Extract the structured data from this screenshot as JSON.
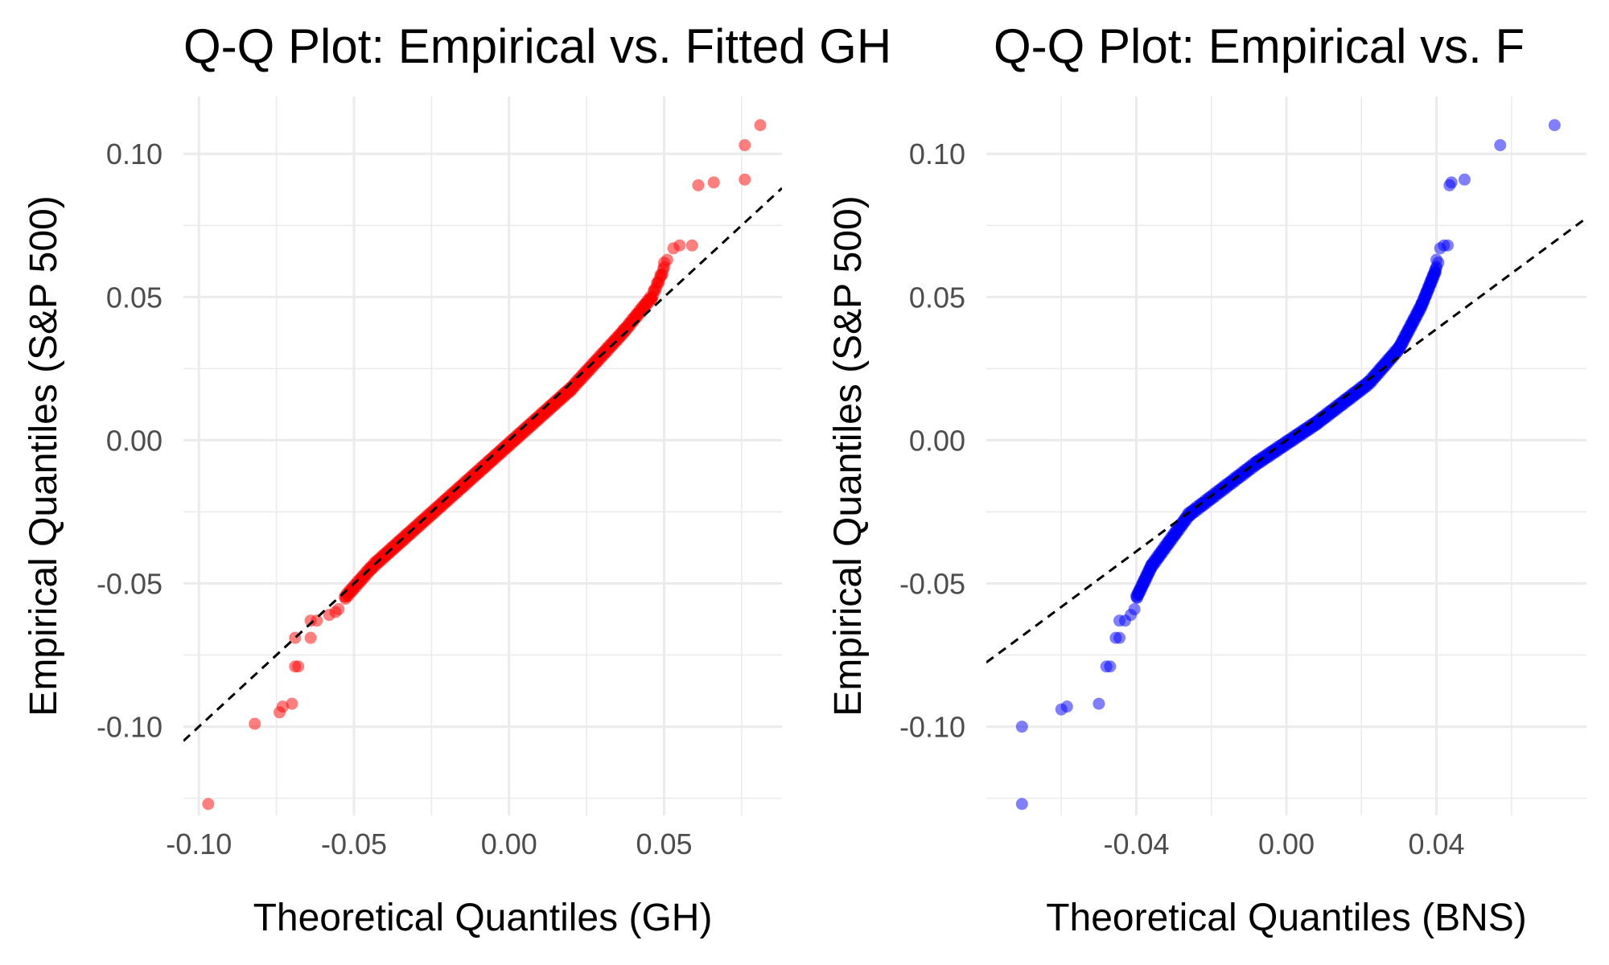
{
  "chart_data": [
    {
      "type": "scatter",
      "title": "Q-Q Plot: Empirical vs. Fitted GH",
      "xlabel": "Theoretical Quantiles (GH)",
      "ylabel": "Empirical Quantiles (S&P 500)",
      "xlim": [
        -0.105,
        0.088
      ],
      "ylim": [
        -0.131,
        0.12
      ],
      "x_ticks": [
        -0.1,
        -0.05,
        0.0,
        0.05
      ],
      "x_tick_labels": [
        "-0.10",
        "-0.05",
        "0.00",
        "0.05"
      ],
      "y_ticks": [
        -0.1,
        -0.05,
        0.0,
        0.05,
        0.1
      ],
      "y_tick_labels": [
        "-0.10",
        "-0.05",
        "0.00",
        "0.05",
        "0.10"
      ],
      "grid": true,
      "point_color": "#ff0000",
      "point_opacity": 0.5,
      "reference_line": {
        "intercept": 0.0,
        "slope": 1.0,
        "style": "dashed",
        "color": "#000000"
      },
      "points": [
        {
          "x": -0.097,
          "y": -0.127
        },
        {
          "x": -0.082,
          "y": -0.099
        },
        {
          "x": -0.074,
          "y": -0.095
        },
        {
          "x": -0.073,
          "y": -0.093
        },
        {
          "x": -0.07,
          "y": -0.092
        },
        {
          "x": -0.069,
          "y": -0.079
        },
        {
          "x": -0.068,
          "y": -0.079
        },
        {
          "x": -0.069,
          "y": -0.069
        },
        {
          "x": -0.064,
          "y": -0.069
        },
        {
          "x": -0.064,
          "y": -0.063
        },
        {
          "x": -0.062,
          "y": -0.063
        },
        {
          "x": -0.058,
          "y": -0.061
        },
        {
          "x": -0.056,
          "y": -0.06
        },
        {
          "x": -0.055,
          "y": -0.059
        },
        {
          "x": 0.061,
          "y": 0.089
        },
        {
          "x": 0.066,
          "y": 0.09
        },
        {
          "x": 0.076,
          "y": 0.091
        },
        {
          "x": 0.076,
          "y": 0.103
        },
        {
          "x": 0.081,
          "y": 0.11
        },
        {
          "x": 0.055,
          "y": 0.068
        },
        {
          "x": 0.059,
          "y": 0.068
        },
        {
          "x": 0.053,
          "y": 0.067
        },
        {
          "x": 0.051,
          "y": 0.063
        },
        {
          "x": 0.05,
          "y": 0.062
        }
      ],
      "dense_segments": [
        {
          "x0": -0.053,
          "x1": -0.044,
          "y0": -0.055,
          "y1": -0.044,
          "n": 40
        },
        {
          "x0": -0.044,
          "x1": 0.02,
          "y0": -0.044,
          "y1": 0.018,
          "n": 320
        },
        {
          "x0": 0.02,
          "x1": 0.037,
          "y0": 0.018,
          "y1": 0.038,
          "n": 80
        },
        {
          "x0": 0.037,
          "x1": 0.046,
          "y0": 0.038,
          "y1": 0.05,
          "n": 40
        },
        {
          "x0": 0.046,
          "x1": 0.05,
          "y0": 0.05,
          "y1": 0.06,
          "n": 15
        }
      ]
    },
    {
      "type": "scatter",
      "title": "Q-Q Plot: Empirical vs. F",
      "xlabel": "Theoretical Quantiles (BNS)",
      "ylabel": "Empirical Quantiles (S&P 500)",
      "xlim": [
        -0.08,
        0.08
      ],
      "ylim": [
        -0.131,
        0.12
      ],
      "x_ticks": [
        -0.04,
        0.0,
        0.04
      ],
      "x_tick_labels": [
        "-0.04",
        "0.00",
        "0.04"
      ],
      "y_ticks": [
        -0.1,
        -0.05,
        0.0,
        0.05,
        0.1
      ],
      "y_tick_labels": [
        "-0.10",
        "-0.05",
        "0.00",
        "0.05",
        "0.10"
      ],
      "grid": true,
      "point_color": "#0000ff",
      "point_opacity": 0.5,
      "reference_line": {
        "intercept": 0.0,
        "slope": 0.97,
        "style": "dashed",
        "color": "#000000"
      },
      "points": [
        {
          "x": -0.0705,
          "y": -0.127
        },
        {
          "x": -0.0705,
          "y": -0.1
        },
        {
          "x": -0.06,
          "y": -0.094
        },
        {
          "x": -0.0585,
          "y": -0.093
        },
        {
          "x": -0.05,
          "y": -0.092
        },
        {
          "x": -0.048,
          "y": -0.079
        },
        {
          "x": -0.047,
          "y": -0.079
        },
        {
          "x": -0.0455,
          "y": -0.069
        },
        {
          "x": -0.0445,
          "y": -0.069
        },
        {
          "x": -0.0445,
          "y": -0.063
        },
        {
          "x": -0.043,
          "y": -0.063
        },
        {
          "x": -0.0415,
          "y": -0.061
        },
        {
          "x": -0.0405,
          "y": -0.059
        },
        {
          "x": 0.0435,
          "y": 0.089
        },
        {
          "x": 0.044,
          "y": 0.09
        },
        {
          "x": 0.0475,
          "y": 0.091
        },
        {
          "x": 0.057,
          "y": 0.103
        },
        {
          "x": 0.0715,
          "y": 0.11
        },
        {
          "x": 0.041,
          "y": 0.067
        },
        {
          "x": 0.042,
          "y": 0.068
        },
        {
          "x": 0.043,
          "y": 0.068
        },
        {
          "x": 0.04,
          "y": 0.063
        },
        {
          "x": 0.0405,
          "y": 0.062
        }
      ],
      "dense_segments": [
        {
          "x0": -0.04,
          "x1": -0.036,
          "y0": -0.055,
          "y1": -0.044,
          "n": 35
        },
        {
          "x0": -0.036,
          "x1": -0.026,
          "y0": -0.044,
          "y1": -0.026,
          "n": 60
        },
        {
          "x0": -0.026,
          "x1": -0.008,
          "y0": -0.026,
          "y1": -0.008,
          "n": 90
        },
        {
          "x0": -0.008,
          "x1": 0.008,
          "y0": -0.008,
          "y1": 0.006,
          "n": 90
        },
        {
          "x0": 0.008,
          "x1": 0.022,
          "y0": 0.006,
          "y1": 0.02,
          "n": 80
        },
        {
          "x0": 0.022,
          "x1": 0.03,
          "y0": 0.02,
          "y1": 0.032,
          "n": 50
        },
        {
          "x0": 0.03,
          "x1": 0.036,
          "y0": 0.032,
          "y1": 0.047,
          "n": 45
        },
        {
          "x0": 0.036,
          "x1": 0.04,
          "y0": 0.047,
          "y1": 0.06,
          "n": 35
        }
      ]
    }
  ]
}
